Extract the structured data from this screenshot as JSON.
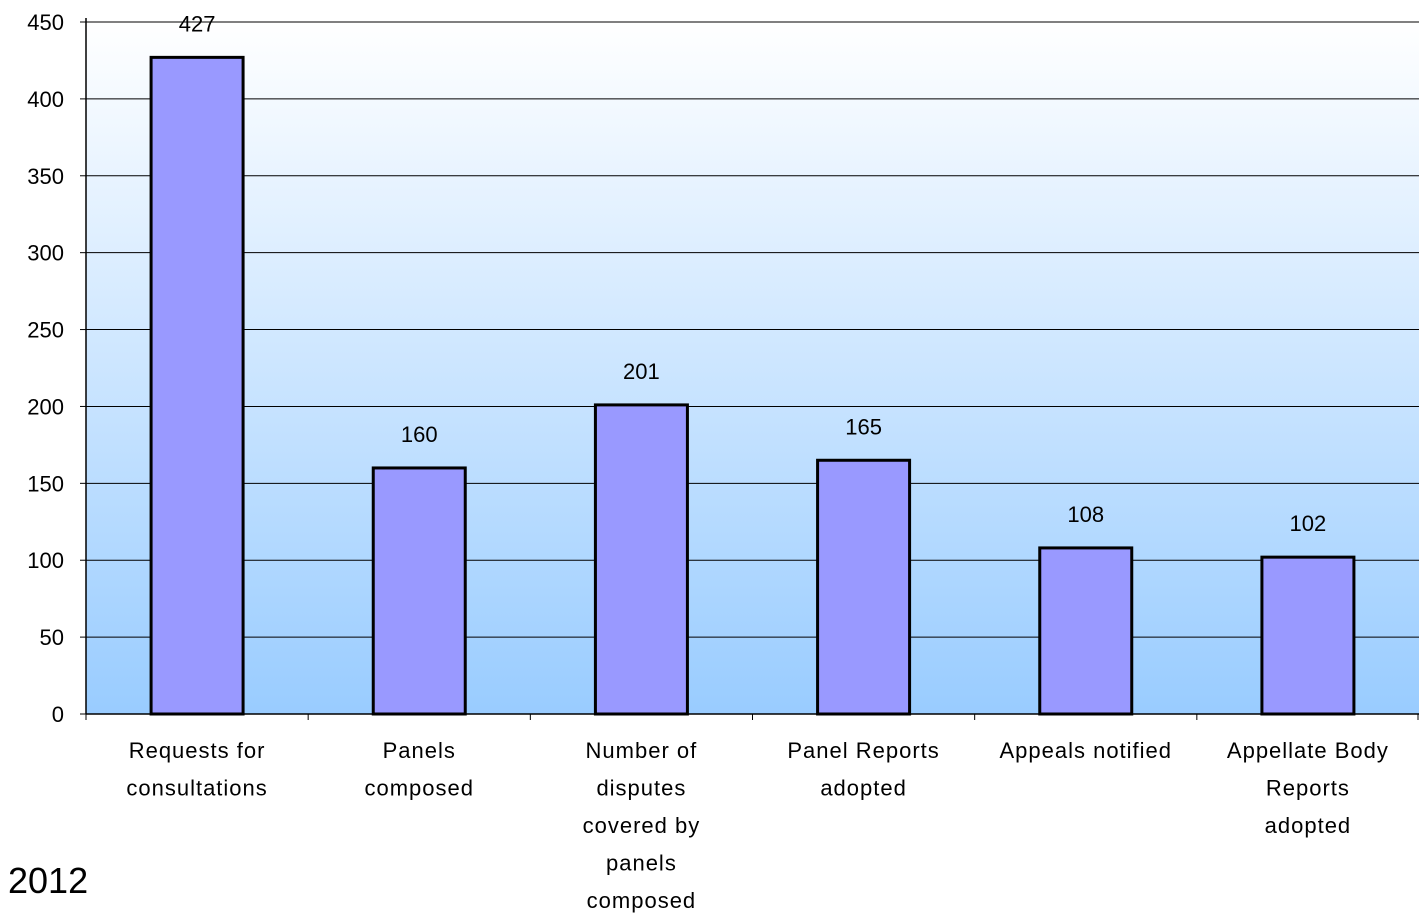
{
  "chart_data": {
    "type": "bar",
    "categories": [
      [
        "Requests for",
        "consultations"
      ],
      [
        "Panels",
        "composed"
      ],
      [
        "Number of",
        "disputes",
        "covered by",
        "panels",
        "composed"
      ],
      [
        "Panel Reports",
        "adopted"
      ],
      [
        "Appeals notified"
      ],
      [
        "Appellate Body",
        "Reports",
        "adopted"
      ]
    ],
    "values": [
      427,
      160,
      201,
      165,
      108,
      102
    ],
    "data_labels": [
      "427",
      "160",
      "201",
      "165",
      "108",
      "102"
    ],
    "ylim": [
      0,
      450
    ],
    "yticks": [
      0,
      50,
      100,
      150,
      200,
      250,
      300,
      350,
      400,
      450
    ],
    "grid": true,
    "legend": "none",
    "colors": {
      "bar_fill": "#9999ff",
      "bar_stroke": "#000000",
      "background_top": "#ffffff",
      "background_bottom": "#99ccff"
    }
  },
  "annotation": "2012"
}
